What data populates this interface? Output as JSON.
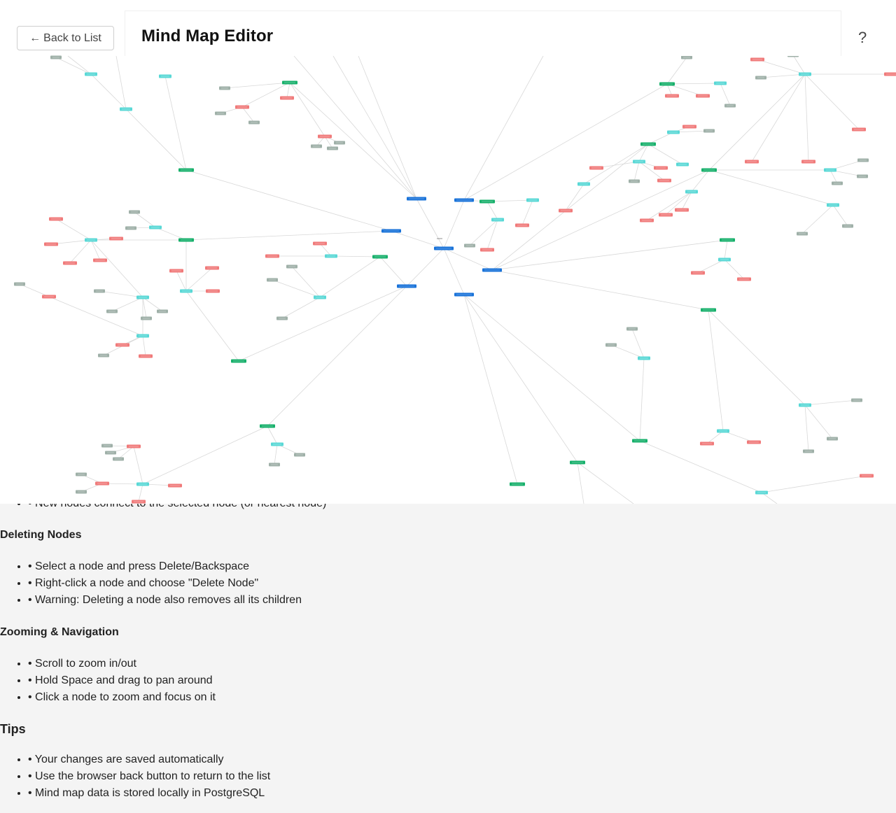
{
  "header": {
    "back_label": "Back to List",
    "back_icon": "arrow-left-icon",
    "title": "Mind Map Editor",
    "help_label": "?"
  },
  "colors": {
    "root": "#1a73d9",
    "level1": "#17b06b",
    "level2": "#59d8d6",
    "leaf_red": "#f07a7a",
    "leaf_gray": "#9fb0a8",
    "edge": "#d8d8d8"
  },
  "help": {
    "partial_item": "• New nodes connect to the selected node (or nearest node)",
    "sections": [
      {
        "title": "Deleting Nodes",
        "items": [
          "• Select a node and press Delete/Backspace",
          "• Right-click a node and choose \"Delete Node\"",
          "• Warning: Deleting a node also removes all its children"
        ]
      },
      {
        "title": "Zooming & Navigation",
        "items": [
          "• Scroll to zoom in/out",
          "• Hold Space and drag to pan around",
          "• Click a node to zoom and focus on it"
        ]
      },
      {
        "title": "Tips",
        "items": [
          "• Your changes are saved automatically",
          "• Use the browser back button to return to the list",
          "• Mind map data is stored locally in PostgreSQL"
        ]
      }
    ]
  }
}
